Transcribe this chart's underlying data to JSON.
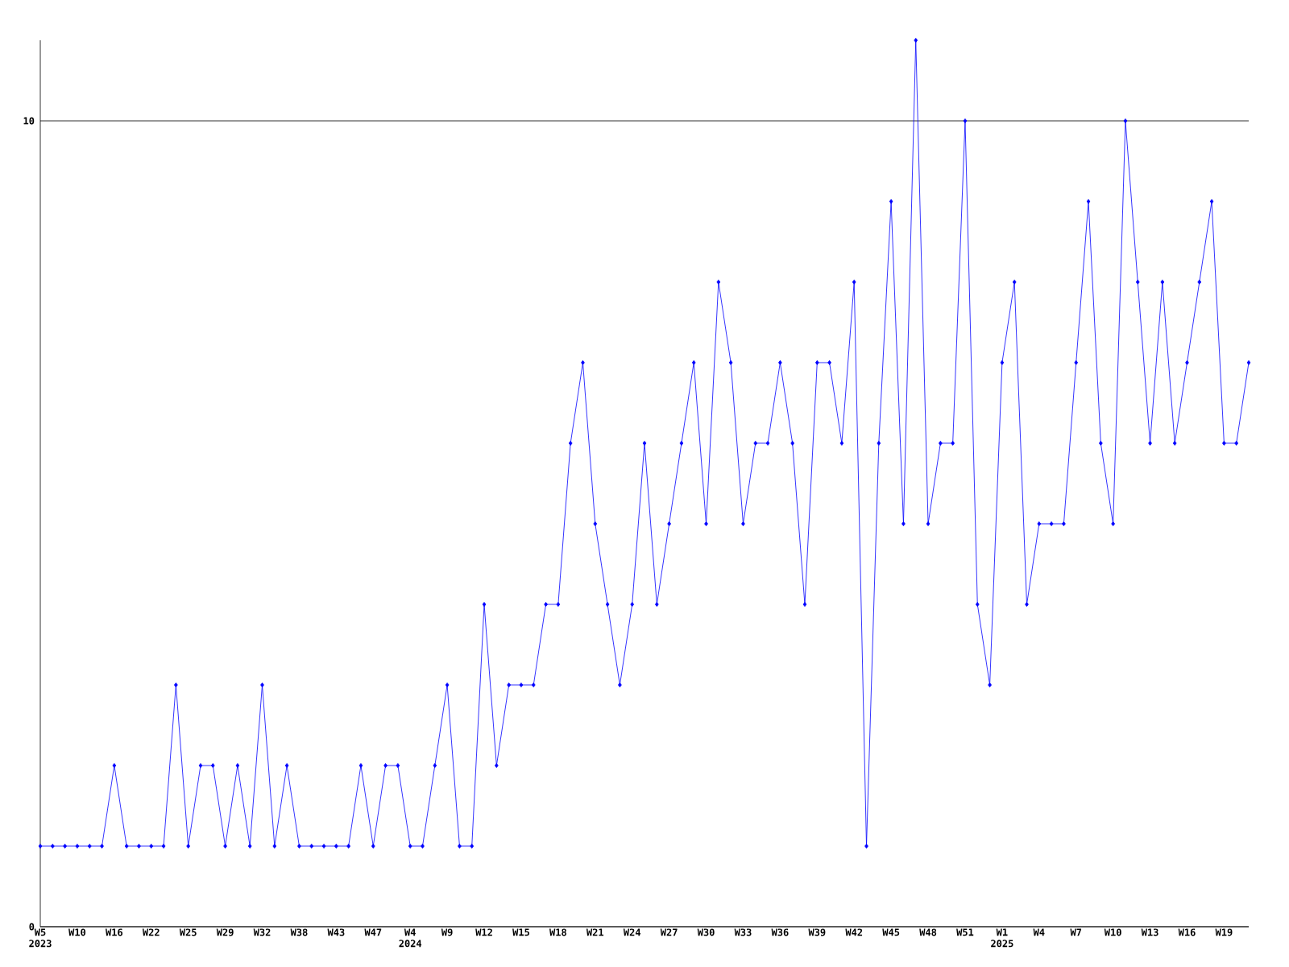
{
  "chart_data": {
    "type": "line",
    "categories": [
      "W5 2023",
      null,
      null,
      "W10",
      null,
      null,
      "W16",
      null,
      null,
      "W22",
      null,
      null,
      "W25",
      null,
      null,
      "W29",
      null,
      null,
      "W32",
      null,
      null,
      "W38",
      null,
      null,
      "W43",
      null,
      null,
      "W47",
      null,
      null,
      "W4 2024",
      null,
      null,
      "W9",
      null,
      null,
      "W12",
      null,
      null,
      "W15",
      null,
      null,
      "W18",
      null,
      null,
      "W21",
      null,
      null,
      "W24",
      null,
      null,
      "W27",
      null,
      null,
      "W30",
      null,
      null,
      "W33",
      null,
      null,
      "W36",
      null,
      null,
      "W39",
      null,
      null,
      "W42",
      null,
      null,
      "W45",
      null,
      null,
      "W48",
      null,
      null,
      "W51",
      null,
      null,
      "W1 2025",
      null,
      null,
      "W4",
      null,
      null,
      "W7",
      null,
      null,
      "W10",
      null,
      null,
      "W13",
      null,
      null,
      "W16",
      null,
      null,
      "W19",
      null,
      null
    ],
    "series": [
      {
        "color": "#0000ff",
        "values": [
          1,
          1,
          1,
          1,
          1,
          1,
          2,
          1,
          1,
          1,
          1,
          3,
          1,
          2,
          2,
          1,
          2,
          1,
          3,
          1,
          2,
          1,
          1,
          1,
          1,
          1,
          2,
          1,
          2,
          2,
          1,
          1,
          2,
          3,
          1,
          1,
          4,
          2,
          3,
          3,
          3,
          4,
          4,
          6,
          7,
          5,
          4,
          3,
          4,
          6,
          4,
          5,
          6,
          7,
          5,
          8,
          7,
          5,
          6,
          6,
          7,
          6,
          4,
          7,
          7,
          6,
          8,
          1,
          6,
          9,
          5,
          11,
          5,
          6,
          6,
          10,
          4,
          3,
          7,
          8,
          4,
          5,
          5,
          5,
          7,
          9,
          6,
          5,
          10,
          8,
          6,
          8,
          6,
          7,
          8,
          9,
          6,
          6,
          7
        ]
      }
    ],
    "ylim": [
      0,
      11
    ],
    "yticks": [
      0,
      10
    ],
    "grid": "y",
    "marker": "diamond",
    "line_style": "solid"
  }
}
